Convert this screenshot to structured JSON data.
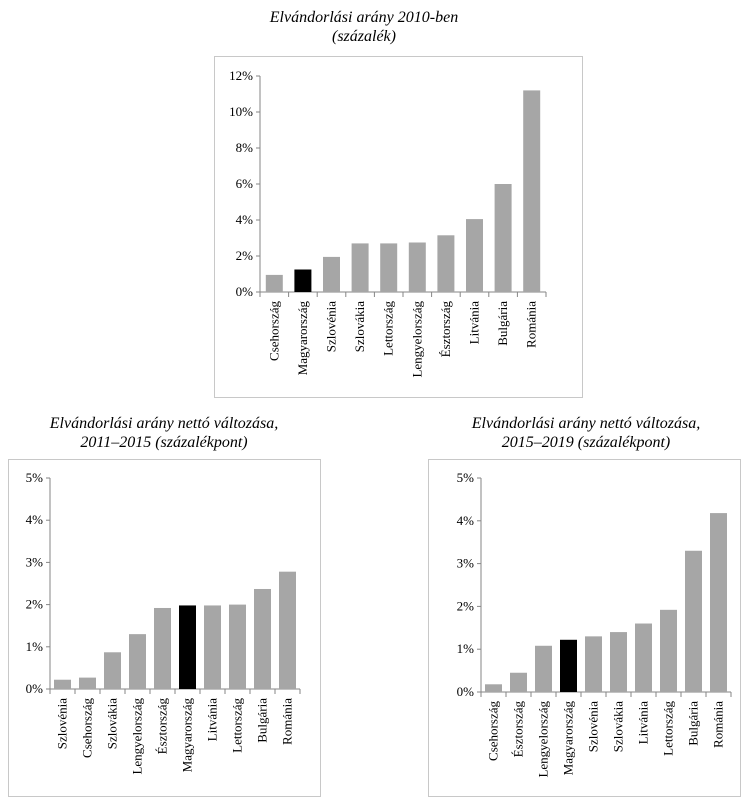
{
  "chart_data": [
    {
      "type": "bar",
      "title_lines": [
        "Elvándorlási arány 2010-ben",
        "(százalék)"
      ],
      "categories": [
        "Csehország",
        "Magyarország",
        "Szlovénia",
        "Szlovákia",
        "Lettország",
        "Lengyelország",
        "Észtország",
        "Litvánia",
        "Bulgária",
        "Románia"
      ],
      "values": [
        0.95,
        1.25,
        1.95,
        2.7,
        2.7,
        2.75,
        3.15,
        4.05,
        6.0,
        11.2
      ],
      "highlight": "Magyarország",
      "ylim": [
        0,
        12
      ],
      "yticks": [
        0,
        2,
        4,
        6,
        8,
        10,
        12
      ],
      "ytick_labels": [
        "0%",
        "2%",
        "4%",
        "6%",
        "8%",
        "10%",
        "12%"
      ],
      "xlabel": "",
      "ylabel": "",
      "grid": false
    },
    {
      "type": "bar",
      "title_lines": [
        "Elvándorlási arány nettó változása,",
        "2011–2015 (százalékpont)"
      ],
      "categories": [
        "Szlovénia",
        "Csehország",
        "Szlovákia",
        "Lengyelország",
        "Észtország",
        "Magyarország",
        "Litvánia",
        "Lettország",
        "Bulgária",
        "Románia"
      ],
      "values": [
        0.22,
        0.27,
        0.87,
        1.3,
        1.92,
        1.98,
        1.98,
        2.0,
        2.37,
        2.78
      ],
      "highlight": "Magyarország",
      "ylim": [
        0,
        5
      ],
      "yticks": [
        0,
        1,
        2,
        3,
        4,
        5
      ],
      "ytick_labels": [
        "0%",
        "1%",
        "2%",
        "3%",
        "4%",
        "5%"
      ],
      "xlabel": "",
      "ylabel": "",
      "grid": false
    },
    {
      "type": "bar",
      "title_lines": [
        "Elvándorlási arány nettó változása,",
        "2015–2019 (százalékpont)"
      ],
      "categories": [
        "Csehország",
        "Észtország",
        "Lengyelország",
        "Magyarország",
        "Szlovénia",
        "Szlovákia",
        "Litvánia",
        "Lettország",
        "Bulgária",
        "Románia"
      ],
      "values": [
        0.18,
        0.45,
        1.08,
        1.22,
        1.3,
        1.4,
        1.6,
        1.92,
        3.3,
        4.18
      ],
      "highlight": "Magyarország",
      "ylim": [
        0,
        5
      ],
      "yticks": [
        0,
        1,
        2,
        3,
        4,
        5
      ],
      "ytick_labels": [
        "0%",
        "1%",
        "2%",
        "3%",
        "4%",
        "5%"
      ],
      "xlabel": "",
      "ylabel": "",
      "grid": false
    }
  ],
  "colors": {
    "bar": "#a6a6a6",
    "highlight_bar": "#000000",
    "axis": "#868686",
    "frame": "#c8c8c8"
  }
}
